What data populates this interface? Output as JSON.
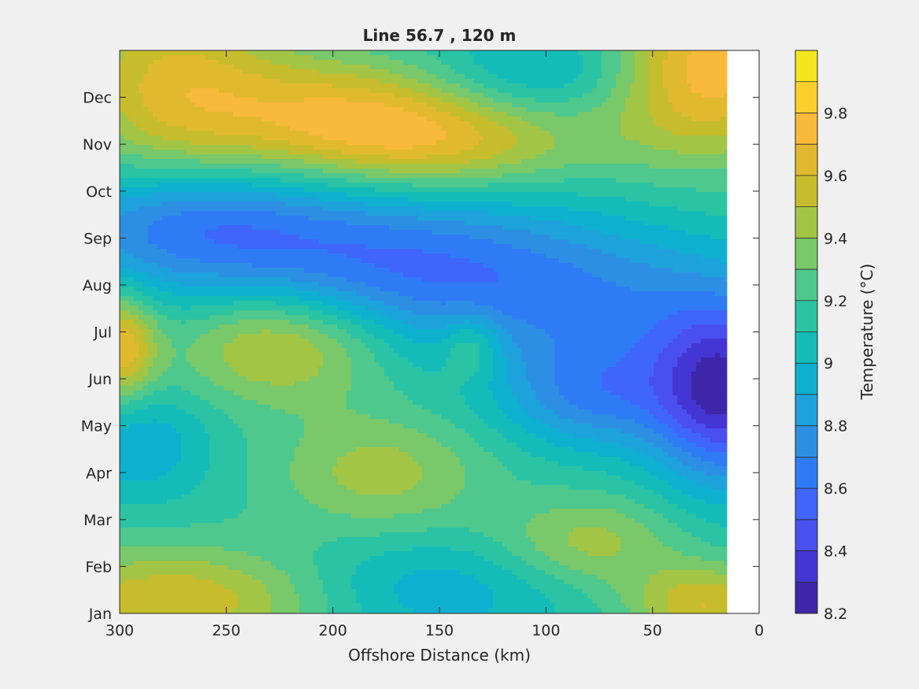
{
  "chart_data": {
    "type": "heatmap",
    "style": "filled-contour",
    "title": "Line 56.7 , 120 m",
    "xlabel": "Offshore Distance (km)",
    "ylabel": "",
    "x_direction": "reversed",
    "xlim": [
      0,
      300
    ],
    "x_ticks": [
      300,
      250,
      200,
      150,
      100,
      50,
      0
    ],
    "y_categories": [
      "Jan",
      "Feb",
      "Mar",
      "Apr",
      "May",
      "Jun",
      "Jul",
      "Aug",
      "Sep",
      "Oct",
      "Nov",
      "Dec"
    ],
    "data_x_extent": [
      15,
      300
    ],
    "colorbar": {
      "label": "Temperature (°C)",
      "range": [
        8.2,
        10.0
      ],
      "step": 0.1,
      "tick_labels": [
        "9.8",
        "9.6",
        "9.4",
        "9.2",
        "9",
        "8.8",
        "8.6",
        "8.4",
        "8.2"
      ],
      "colors": [
        "#3d26a8",
        "#4336d4",
        "#4a4ff0",
        "#4065fb",
        "#2f7bf6",
        "#2d8fe4",
        "#1ea2db",
        "#0db1cf",
        "#13bcb9",
        "#2ac3a4",
        "#4ec88d",
        "#79c86a",
        "#a3c545",
        "#c7bc2c",
        "#e1b92f",
        "#f9b93a",
        "#fcd02c",
        "#f2e61f"
      ]
    },
    "field": {
      "base": 9.15,
      "features": [
        {
          "x": 195,
          "month": 10.6,
          "amp": 0.5,
          "sx": 45,
          "sy": 0.9
        },
        {
          "x": 140,
          "month": 10.0,
          "amp": 0.35,
          "sx": 45,
          "sy": 0.7
        },
        {
          "x": 275,
          "month": 11.3,
          "amp": 0.45,
          "sx": 35,
          "sy": 1.5
        },
        {
          "x": 25,
          "month": 11.6,
          "amp": 0.65,
          "sx": 35,
          "sy": 1.3
        },
        {
          "x": 95,
          "month": 11.6,
          "amp": -0.25,
          "sx": 40,
          "sy": 0.7
        },
        {
          "x": 220,
          "month": 8.0,
          "amp": -0.35,
          "sx": 90,
          "sy": 1.0
        },
        {
          "x": 150,
          "month": 7.0,
          "amp": -0.35,
          "sx": 80,
          "sy": 1.0
        },
        {
          "x": 60,
          "month": 6.0,
          "amp": -0.25,
          "sx": 60,
          "sy": 1.2
        },
        {
          "x": 268,
          "month": 8.5,
          "amp": -0.25,
          "sx": 40,
          "sy": 0.8
        },
        {
          "x": 300,
          "month": 5.7,
          "amp": 0.55,
          "sx": 12,
          "sy": 0.8
        },
        {
          "x": 225,
          "month": 5.8,
          "amp": 0.45,
          "sx": 35,
          "sy": 0.9
        },
        {
          "x": 135,
          "month": 5.7,
          "amp": 0.25,
          "sx": 10,
          "sy": 0.5
        },
        {
          "x": 80,
          "month": 4.6,
          "amp": -0.35,
          "sx": 28,
          "sy": 0.8
        },
        {
          "x": 15,
          "month": 4.6,
          "amp": -0.8,
          "sx": 25,
          "sy": 1.3
        },
        {
          "x": 178,
          "month": 3.0,
          "amp": 0.3,
          "sx": 35,
          "sy": 0.9
        },
        {
          "x": 290,
          "month": 3.6,
          "amp": -0.25,
          "sx": 22,
          "sy": 0.8
        },
        {
          "x": 270,
          "month": 0.3,
          "amp": 0.45,
          "sx": 55,
          "sy": 0.8
        },
        {
          "x": 160,
          "month": 0.5,
          "amp": -0.25,
          "sx": 50,
          "sy": 0.8
        },
        {
          "x": 80,
          "month": 1.5,
          "amp": 0.3,
          "sx": 30,
          "sy": 0.7
        },
        {
          "x": 25,
          "month": 0.2,
          "amp": 0.45,
          "sx": 25,
          "sy": 0.6
        }
      ]
    }
  }
}
